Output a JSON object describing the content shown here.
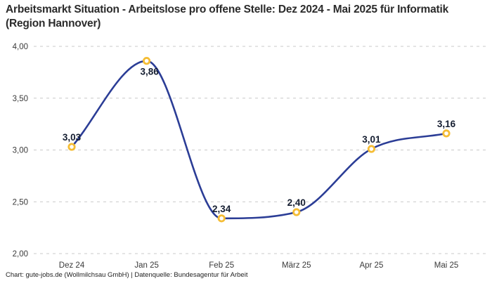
{
  "title": "Arbeitsmarkt Situation - Arbeitslose pro offene Stelle: Dez 2024 - Mai 2025 für Informatik (Region Hannover)",
  "footer": {
    "text": "Chart: gute-jobs.de (Wollmilchsau GmbH) | Datenquelle: Bundesagentur für Arbeit"
  },
  "colors": {
    "line": "#2b3d96",
    "marker_ring": "#f5bd35",
    "marker_fill": "#ffffff",
    "grid": "#c9c9c9",
    "axis_text": "#3a3a3a",
    "value_label": "#141d30",
    "title_text": "#2b2b2b"
  },
  "chart_data": {
    "type": "line",
    "title": "Arbeitsmarkt Situation - Arbeitslose pro offene Stelle: Dez 2024 - Mai 2025 für Informatik (Region Hannover)",
    "categories": [
      "Dez 24",
      "Jan 25",
      "Feb 25",
      "März 25",
      "Apr 25",
      "Mai 25"
    ],
    "values": [
      3.03,
      3.86,
      2.34,
      2.4,
      3.01,
      3.16
    ],
    "value_labels": [
      "3,03",
      "3,86",
      "2,34",
      "2,40",
      "3,01",
      "3,16"
    ],
    "label_positions": [
      "above",
      "below",
      "above",
      "above",
      "above",
      "above"
    ],
    "yticks": {
      "values": [
        2.0,
        2.5,
        3.0,
        3.5,
        4.0
      ],
      "labels": [
        "2,00",
        "2,50",
        "3,00",
        "3,50",
        "4,00"
      ]
    },
    "ylim": [
      2.0,
      4.0
    ],
    "xlabel": "",
    "ylabel": "",
    "grid": "horizontal-dashed",
    "legend": "none",
    "smooth": "monotone"
  }
}
